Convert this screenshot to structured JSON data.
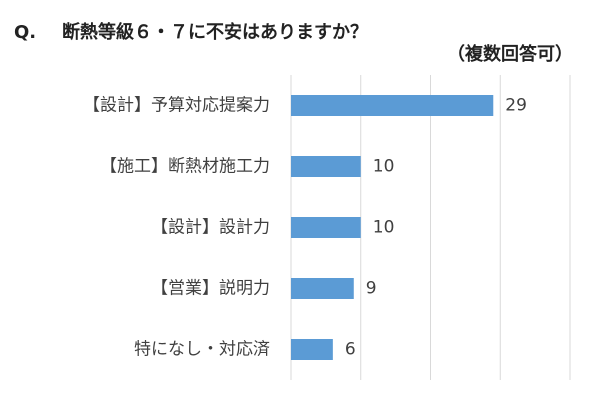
{
  "header": {
    "q_label": "Q.",
    "title": "断熱等級６・７に不安はありますか？",
    "subtitle": "（複数回答可）"
  },
  "chart_data": {
    "type": "bar",
    "orientation": "horizontal",
    "categories": [
      "【設計】予算対応提案力",
      "【施工】断熱材施工力",
      "【設計】設計力",
      "【営業】説明力",
      "特になし・対応済"
    ],
    "values": [
      29,
      10,
      10,
      9,
      6
    ],
    "xlim": [
      0,
      40
    ],
    "grid": true,
    "bar_color": "#5b9bd5",
    "grid_color": "#d9d9d9"
  }
}
